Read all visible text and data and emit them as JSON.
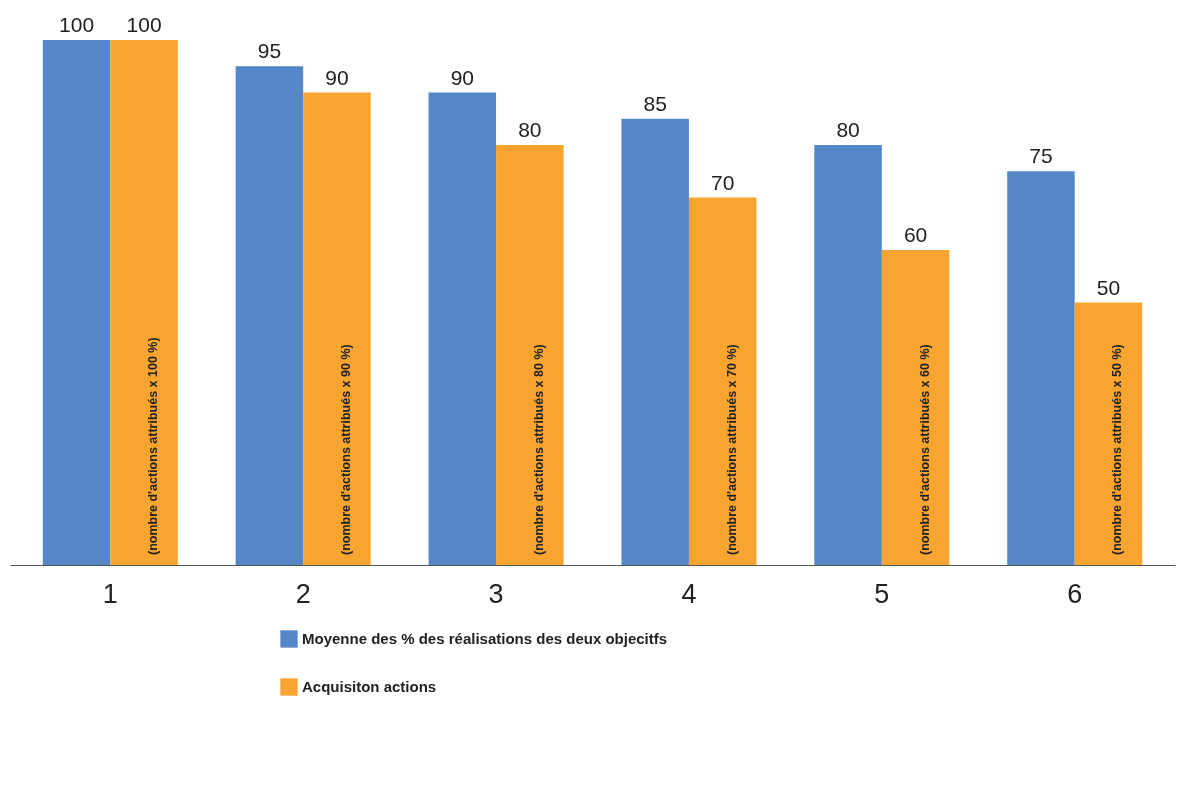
{
  "chart_data": {
    "type": "bar",
    "categories": [
      "1",
      "2",
      "3",
      "4",
      "5",
      "6"
    ],
    "series": [
      {
        "name": "Moyenne des % des réalisations des deux objecitfs",
        "color": "#5587c6",
        "values": [
          100,
          95,
          90,
          85,
          80,
          75
        ]
      },
      {
        "name": "Acquisiton actions",
        "color": "#f7a530",
        "values": [
          100,
          90,
          80,
          70,
          60,
          50
        ]
      }
    ],
    "data_labels": true,
    "tick_labels": "x",
    "grid": false,
    "legend": "bottom",
    "annotations": [
      "(nombre d'actions attribués x 100 %)",
      "(nombre d'actions attribués x 90 %)",
      "(nombre d'actions attribués x 80 %)",
      "(nombre d'actions attribués x 70 %)",
      "(nombre d'actions attribués x 60 %)",
      "(nombre d'actions attribués x 50 %)"
    ]
  }
}
